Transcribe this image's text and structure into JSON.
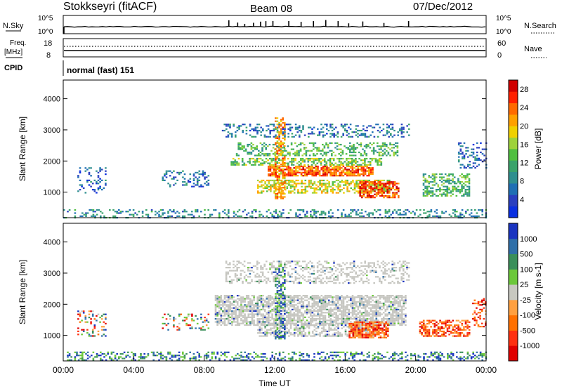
{
  "header": {
    "station": "Stokkseyri (fitACF)",
    "beam": "Beam 08",
    "date": "07/Dec/2012"
  },
  "strips": {
    "nsky": {
      "label": "N.Sky",
      "left_ticks": [
        "10^5",
        "10^0"
      ],
      "right_ticks": [
        "10^5",
        "10^0"
      ],
      "right_label": "N.Search"
    },
    "freq": {
      "label_line1": "Freq.",
      "label_line2": "[MHz]",
      "left_ticks": [
        "18",
        "8"
      ],
      "right_ticks": [
        "60",
        "0"
      ],
      "right_label": "Nave"
    },
    "cpid": {
      "label": "CPID",
      "mode_text": "normal (fast) 151"
    }
  },
  "chart_data": [
    {
      "panel": "power",
      "type": "heatmap",
      "xlabel": "Time UT",
      "ylabel": "Slant Range [km]",
      "x_range_hours": [
        0,
        24
      ],
      "ylim": [
        180,
        4600
      ],
      "y_ticks": [
        "1000",
        "2000",
        "3000",
        "4000"
      ],
      "colorbar": {
        "label": "Power [dB]",
        "tick_labels": [
          "4",
          "8",
          "12",
          "16",
          "20",
          "24",
          "28"
        ],
        "tick_values": [
          4,
          8,
          12,
          16,
          20,
          24,
          28
        ],
        "range": [
          0,
          30
        ],
        "colors": [
          "#0a2fe0",
          "#2a3fbf",
          "#1f6fb4",
          "#2f8f8f",
          "#3aa36b",
          "#4fbf40",
          "#9ed23b",
          "#f0d000",
          "#ffa000",
          "#ff6a00",
          "#ff2000",
          "#d00000"
        ]
      },
      "regions": [
        {
          "t": [
            0.8,
            2.4
          ],
          "r": [
            1000,
            1800
          ],
          "level": 5,
          "density": 0.25
        },
        {
          "t": [
            5.6,
            8.2
          ],
          "r": [
            1200,
            1700
          ],
          "level": 6,
          "density": 0.28
        },
        {
          "t": [
            9.0,
            19.6
          ],
          "r": [
            2800,
            3200
          ],
          "level": 6,
          "density": 0.3
        },
        {
          "t": [
            9.8,
            19.0
          ],
          "r": [
            2200,
            2600
          ],
          "level": 12,
          "density": 0.4
        },
        {
          "t": [
            9.5,
            18.0
          ],
          "r": [
            1900,
            2100
          ],
          "level": 14,
          "density": 0.55
        },
        {
          "t": [
            11.6,
            17.6
          ],
          "r": [
            1550,
            1850
          ],
          "level": 25,
          "density": 0.75
        },
        {
          "t": [
            11.0,
            18.5
          ],
          "r": [
            1000,
            1400
          ],
          "level": 18,
          "density": 0.55
        },
        {
          "t": [
            16.8,
            19.0
          ],
          "r": [
            850,
            1350
          ],
          "level": 27,
          "density": 0.65
        },
        {
          "t": [
            20.4,
            23.0
          ],
          "r": [
            900,
            1600
          ],
          "level": 12,
          "density": 0.5
        },
        {
          "t": [
            22.4,
            24.0
          ],
          "r": [
            1800,
            2600
          ],
          "level": 6,
          "density": 0.25
        },
        {
          "t": [
            12.0,
            12.6
          ],
          "r": [
            800,
            3400
          ],
          "level": 22,
          "density": 0.5
        },
        {
          "t": [
            0.0,
            24.0
          ],
          "r": [
            200,
            450
          ],
          "level": 8,
          "density": 0.3
        }
      ]
    },
    {
      "panel": "velocity",
      "type": "heatmap",
      "xlabel": "Time UT",
      "ylabel": "Slant Range [km]",
      "x_range_hours": [
        0,
        24
      ],
      "ylim": [
        180,
        4600
      ],
      "y_ticks": [
        "1000",
        "2000",
        "3000",
        "4000"
      ],
      "x_ticks": [
        "00:00",
        "04:00",
        "08:00",
        "12:00",
        "16:00",
        "20:00",
        "00:00"
      ],
      "colorbar": {
        "label": "Velocity [m s-1]",
        "tick_labels": [
          "1000",
          "500",
          "100",
          "25",
          "-25",
          "-100",
          "-500",
          "-1000"
        ],
        "colors": [
          "#1a34c0",
          "#2f6fa8",
          "#3a8f5a",
          "#6cc83a",
          "#c8c8c0",
          "#ffa040",
          "#ff7000",
          "#ff3010",
          "#e00000"
        ]
      },
      "ground_scatter_color": "#c6c6c0",
      "regions": [
        {
          "t": [
            0.8,
            2.4
          ],
          "r": [
            1000,
            1800
          ],
          "cls": "mixed",
          "density": 0.25
        },
        {
          "t": [
            5.6,
            8.2
          ],
          "r": [
            1200,
            1700
          ],
          "cls": "mixed",
          "density": 0.25
        },
        {
          "t": [
            9.2,
            19.6
          ],
          "r": [
            2700,
            3400
          ],
          "cls": "gs",
          "density": 0.35
        },
        {
          "t": [
            8.6,
            19.4
          ],
          "r": [
            1350,
            2300
          ],
          "cls": "gs",
          "density": 0.7
        },
        {
          "t": [
            11.0,
            17.8
          ],
          "r": [
            1000,
            1400
          ],
          "cls": "gs",
          "density": 0.55
        },
        {
          "t": [
            16.2,
            18.4
          ],
          "r": [
            950,
            1450
          ],
          "cls": "neg",
          "density": 0.75
        },
        {
          "t": [
            20.2,
            23.0
          ],
          "r": [
            1000,
            1500
          ],
          "cls": "neg",
          "density": 0.65
        },
        {
          "t": [
            23.2,
            24.0
          ],
          "r": [
            1300,
            2200
          ],
          "cls": "neg",
          "density": 0.35
        },
        {
          "t": [
            12.0,
            12.6
          ],
          "r": [
            900,
            3300
          ],
          "cls": "pos",
          "density": 0.45
        },
        {
          "t": [
            0.0,
            24.0
          ],
          "r": [
            200,
            480
          ],
          "cls": "pos",
          "density": 0.35
        }
      ]
    }
  ]
}
